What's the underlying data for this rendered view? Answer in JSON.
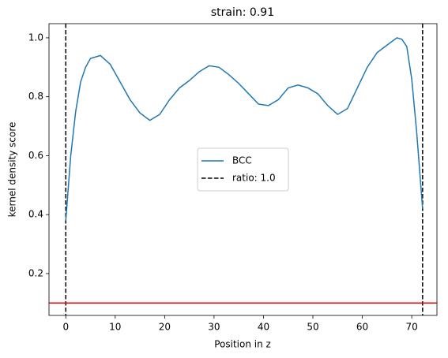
{
  "chart_data": {
    "type": "line",
    "title": "strain: 0.91",
    "xlabel": "Position in z",
    "ylabel": "kernel density score",
    "x": [
      0,
      1,
      2,
      3,
      4,
      5,
      7,
      9,
      11,
      13,
      15,
      17,
      19,
      21,
      23,
      25,
      27,
      29,
      31,
      33,
      35,
      37,
      39,
      41,
      43,
      45,
      47,
      49,
      51,
      53,
      55,
      57,
      59,
      61,
      63,
      65,
      67,
      68,
      69,
      70,
      71,
      72.2
    ],
    "series": [
      {
        "name": "BCC",
        "color": "#1f77b4",
        "values": [
          0.38,
          0.6,
          0.75,
          0.85,
          0.9,
          0.93,
          0.94,
          0.91,
          0.85,
          0.79,
          0.745,
          0.72,
          0.74,
          0.79,
          0.83,
          0.855,
          0.885,
          0.905,
          0.9,
          0.875,
          0.845,
          0.81,
          0.775,
          0.77,
          0.79,
          0.83,
          0.84,
          0.83,
          0.81,
          0.77,
          0.74,
          0.76,
          0.83,
          0.9,
          0.95,
          0.975,
          1.0,
          0.995,
          0.97,
          0.86,
          0.68,
          0.42
        ]
      }
    ],
    "vlines": {
      "name": "ratio: 1.0",
      "color": "#000000",
      "values": [
        0,
        72.2
      ]
    },
    "hline": {
      "value": 0.1,
      "color": "#ff0000"
    },
    "xlim": [
      -3.4,
      75.1
    ],
    "ylim": [
      0.058,
      1.048
    ],
    "xticks": [
      0,
      10,
      20,
      30,
      40,
      50,
      60,
      70
    ],
    "yticks": [
      0.2,
      0.4,
      0.6,
      0.8,
      {
        "value": 1.0,
        "label": "1.0"
      }
    ],
    "legend": "center"
  }
}
